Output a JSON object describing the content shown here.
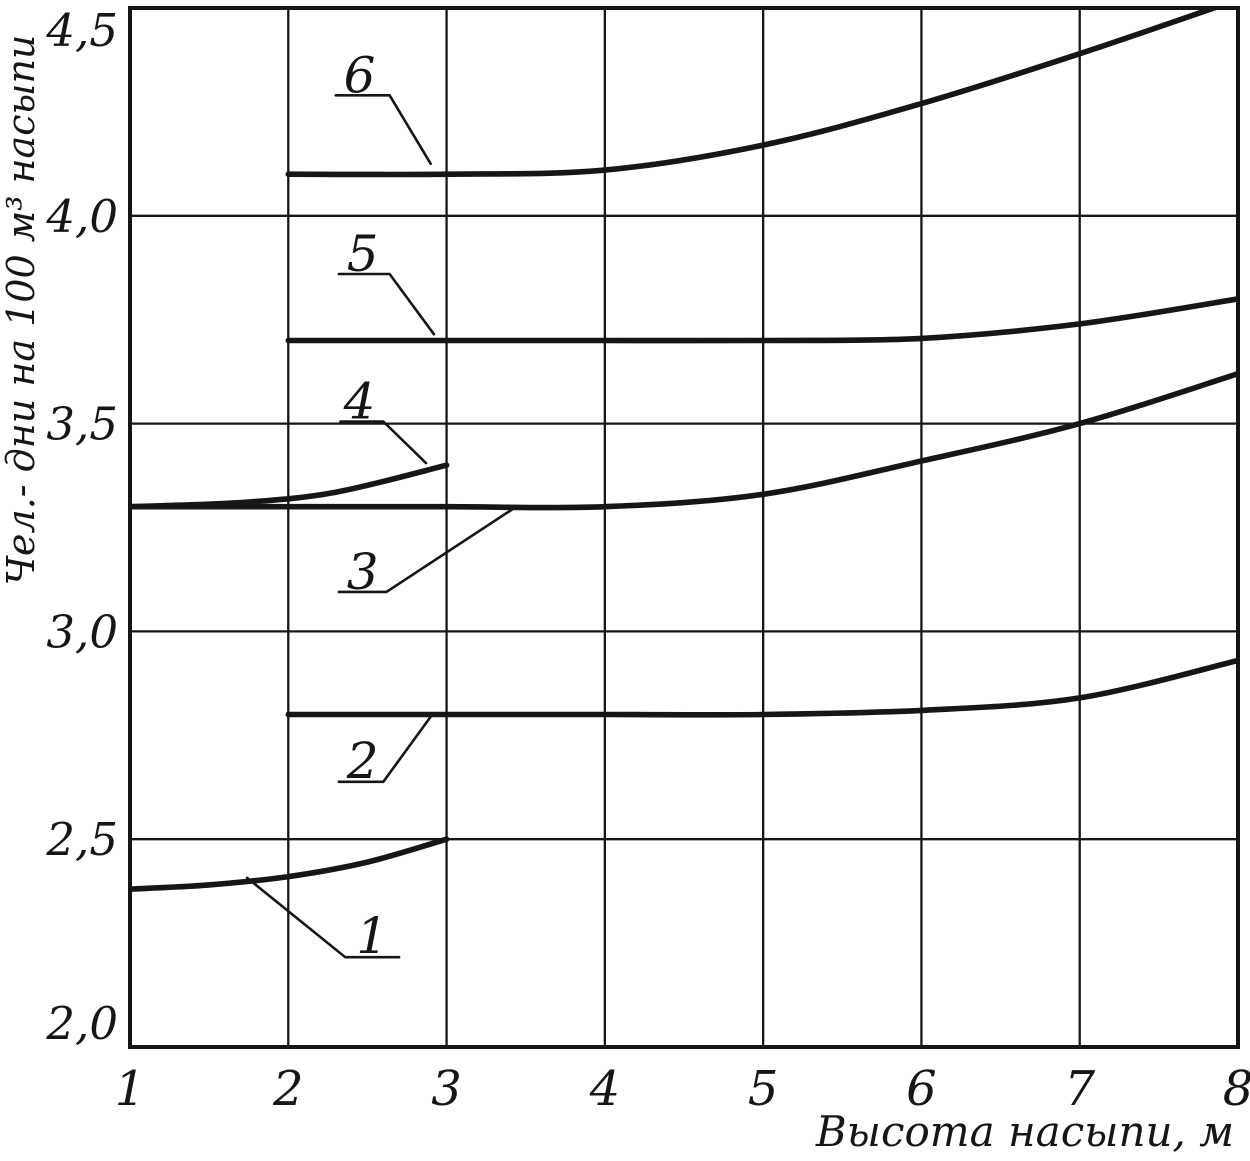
{
  "style": {
    "background": "#ffffff",
    "ink": "#161616"
  },
  "chart_data": {
    "type": "line",
    "title": "",
    "xlabel": "Высота насыпи, м",
    "ylabel": "Чел.- дни на 100 м³ насыпи",
    "xlim": [
      1,
      8
    ],
    "ylim": [
      2.0,
      4.5
    ],
    "grid": true,
    "legend_position": "none",
    "x_ticks": [
      {
        "v": 1,
        "label": "1"
      },
      {
        "v": 2,
        "label": "2"
      },
      {
        "v": 3,
        "label": "3"
      },
      {
        "v": 4,
        "label": "4"
      },
      {
        "v": 5,
        "label": "5"
      },
      {
        "v": 6,
        "label": "6"
      },
      {
        "v": 7,
        "label": "7"
      },
      {
        "v": 8,
        "label": "8"
      }
    ],
    "y_ticks": [
      {
        "v": 2.0,
        "label": "2,0"
      },
      {
        "v": 2.5,
        "label": "2,5"
      },
      {
        "v": 3.0,
        "label": "3,0"
      },
      {
        "v": 3.5,
        "label": "3,5"
      },
      {
        "v": 4.0,
        "label": "4,0"
      },
      {
        "v": 4.5,
        "label": "4,5"
      }
    ],
    "series": [
      {
        "name": "1",
        "points": [
          [
            1,
            2.38
          ],
          [
            1.5,
            2.39
          ],
          [
            2,
            2.41
          ],
          [
            2.5,
            2.445
          ],
          [
            3,
            2.5
          ]
        ]
      },
      {
        "name": "2",
        "points": [
          [
            2,
            2.8
          ],
          [
            3,
            2.8
          ],
          [
            4,
            2.8
          ],
          [
            5,
            2.8
          ],
          [
            6,
            2.81
          ],
          [
            7,
            2.84
          ],
          [
            8,
            2.93
          ]
        ]
      },
      {
        "name": "3",
        "points": [
          [
            1,
            3.3
          ],
          [
            2,
            3.3
          ],
          [
            3,
            3.3
          ],
          [
            4,
            3.3
          ],
          [
            5,
            3.33
          ],
          [
            6,
            3.41
          ],
          [
            7,
            3.5
          ],
          [
            8,
            3.62
          ]
        ]
      },
      {
        "name": "4",
        "points": [
          [
            1,
            3.3
          ],
          [
            1.7,
            3.31
          ],
          [
            2.3,
            3.335
          ],
          [
            3,
            3.4
          ]
        ]
      },
      {
        "name": "5",
        "points": [
          [
            2,
            3.7
          ],
          [
            3,
            3.7
          ],
          [
            4,
            3.7
          ],
          [
            5,
            3.7
          ],
          [
            6,
            3.705
          ],
          [
            7,
            3.74
          ],
          [
            8,
            3.8
          ]
        ]
      },
      {
        "name": "6",
        "points": [
          [
            2,
            4.1
          ],
          [
            3,
            4.1
          ],
          [
            4,
            4.11
          ],
          [
            5,
            4.17
          ],
          [
            6,
            4.27
          ],
          [
            7,
            4.39
          ],
          [
            8,
            4.52
          ]
        ]
      }
    ],
    "curve_labels": [
      {
        "text": "1",
        "x": 2.53,
        "y": 2.27,
        "leader": [
          [
            2.7,
            2.216
          ],
          [
            2.36,
            2.216
          ],
          [
            1.74,
            2.407
          ]
        ]
      },
      {
        "text": "2",
        "x": 2.47,
        "y": 2.69,
        "leader": [
          [
            2.32,
            2.638
          ],
          [
            2.6,
            2.638
          ],
          [
            2.91,
            2.8
          ]
        ]
      },
      {
        "text": "3",
        "x": 2.47,
        "y": 3.145,
        "leader": [
          [
            2.32,
            3.095
          ],
          [
            2.62,
            3.095
          ],
          [
            3.42,
            3.295
          ]
        ]
      },
      {
        "text": "4",
        "x": 2.45,
        "y": 3.555,
        "leader": [
          [
            2.33,
            3.505
          ],
          [
            2.6,
            3.505
          ],
          [
            2.87,
            3.405
          ]
        ]
      },
      {
        "text": "5",
        "x": 2.47,
        "y": 3.91,
        "leader": [
          [
            2.32,
            3.86
          ],
          [
            2.64,
            3.86
          ],
          [
            2.92,
            3.715
          ]
        ]
      },
      {
        "text": "6",
        "x": 2.45,
        "y": 4.34,
        "leader": [
          [
            2.3,
            4.29
          ],
          [
            2.64,
            4.29
          ],
          [
            2.9,
            4.125
          ]
        ]
      }
    ]
  }
}
